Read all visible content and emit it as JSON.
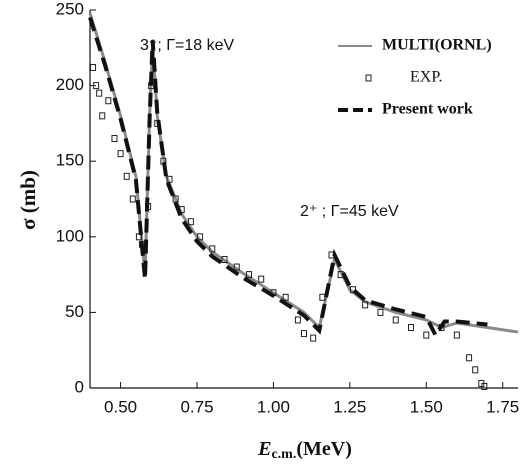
{
  "chart_data": {
    "type": "line",
    "y_label": "σ (mb)",
    "x_label": [
      "E",
      "c.m.",
      "(MeV)"
    ],
    "annotations": [
      "3⁺; Γ=18 keV",
      "2⁺ ; Γ=45 keV"
    ],
    "xlim": [
      0.4,
      1.8
    ],
    "ylim": [
      0,
      250
    ],
    "xticks": [
      {
        "value": 0.5,
        "label": "0.50"
      },
      {
        "value": 0.75,
        "label": "0.75"
      },
      {
        "value": 1.0,
        "label": "1.00"
      },
      {
        "value": 1.25,
        "label": "1.25"
      },
      {
        "value": 1.5,
        "label": "1.50"
      },
      {
        "value": 1.75,
        "label": "1.75"
      }
    ],
    "yticks": [
      0,
      50,
      100,
      150,
      200,
      250
    ],
    "legend": "upper right",
    "series": [
      {
        "name": "MULTI(ORNL)",
        "color": "#8a8a8a",
        "style": "solid",
        "x": [
          0.4,
          0.45,
          0.5,
          0.55,
          0.58,
          0.595,
          0.605,
          0.62,
          0.65,
          0.7,
          0.75,
          0.8,
          0.9,
          1.0,
          1.1,
          1.15,
          1.2,
          1.25,
          1.3,
          1.4,
          1.5,
          1.55,
          1.6,
          1.7,
          1.8
        ],
        "values": [
          248,
          215,
          180,
          140,
          75,
          180,
          228,
          180,
          140,
          115,
          100,
          90,
          76,
          63,
          50,
          40,
          85,
          65,
          57,
          50,
          45,
          40,
          43,
          40,
          37
        ]
      },
      {
        "name": "EXP.",
        "color": "#222222",
        "style": "marker",
        "x": [
          0.41,
          0.42,
          0.43,
          0.44,
          0.46,
          0.48,
          0.5,
          0.52,
          0.54,
          0.56,
          0.57,
          0.59,
          0.6,
          0.62,
          0.64,
          0.66,
          0.68,
          0.7,
          0.73,
          0.76,
          0.8,
          0.84,
          0.88,
          0.92,
          0.96,
          1.0,
          1.04,
          1.08,
          1.1,
          1.13,
          1.16,
          1.19,
          1.22,
          1.26,
          1.3,
          1.35,
          1.4,
          1.45,
          1.5,
          1.55,
          1.6,
          1.64,
          1.66,
          1.68,
          1.69
        ],
        "values": [
          212,
          200,
          195,
          180,
          190,
          165,
          155,
          140,
          125,
          100,
          95,
          120,
          200,
          175,
          150,
          138,
          125,
          118,
          110,
          100,
          92,
          85,
          80,
          75,
          72,
          63,
          60,
          45,
          36,
          33,
          60,
          88,
          75,
          65,
          55,
          50,
          45,
          40,
          35,
          40,
          35,
          20,
          12,
          3,
          1
        ]
      },
      {
        "name": "Present work",
        "color": "#111111",
        "style": "dashed",
        "x": [
          0.4,
          0.45,
          0.5,
          0.55,
          0.58,
          0.595,
          0.605,
          0.62,
          0.65,
          0.7,
          0.75,
          0.8,
          0.9,
          1.0,
          1.1,
          1.15,
          1.2,
          1.25,
          1.3,
          1.4,
          1.5,
          1.53,
          1.56,
          1.6,
          1.7
        ],
        "values": [
          245,
          213,
          178,
          138,
          72,
          178,
          230,
          182,
          138,
          112,
          97,
          87,
          73,
          61,
          48,
          38,
          88,
          67,
          58,
          52,
          47,
          35,
          44,
          44,
          42
        ]
      }
    ]
  }
}
